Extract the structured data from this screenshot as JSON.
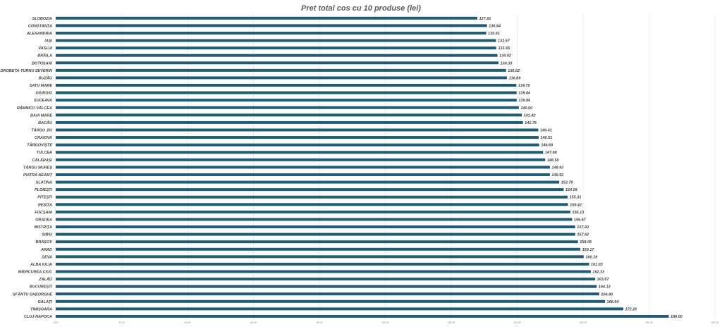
{
  "chart_data": {
    "type": "bar",
    "orientation": "horizontal",
    "title": "Pret total cos cu 10 produse (lei)",
    "xlabel": "",
    "ylabel": "",
    "xlim": [
      0,
      200
    ],
    "grid": true,
    "legend": "none",
    "bar_color": "#1f5c7a",
    "ticks": [
      "0.00",
      "20.00",
      "40.00",
      "60.00",
      "80.00",
      "100.00",
      "120.00",
      "140.00",
      "160.00",
      "180.00",
      "200.00"
    ],
    "tick_values": [
      0,
      20,
      40,
      60,
      80,
      100,
      120,
      140,
      160,
      180,
      200
    ],
    "categories": [
      "SLOBOZIA",
      "CONSTANȚA",
      "ALEXANDRIA",
      "IAȘI",
      "VASLUI",
      "BRĂILA",
      "BOTOȘANI",
      "DROBETA-TURNU SEVERIN",
      "BUZĂU",
      "SATU MARE",
      "GIURGIU",
      "SUCEAVA",
      "RÂMNICU VÂLCEA",
      "BAIA MARE",
      "BACĂU",
      "TÂRGU JIU",
      "CRAIOVA",
      "TÂRGOVIȘTE",
      "TULCEA",
      "CĂLĂRAȘI",
      "TÂRGU MUREȘ",
      "PIATRA NEAMȚ",
      "SLATINA",
      "PLOIEȘTI",
      "PITEȘTI",
      "REȘIȚA",
      "FOCȘANI",
      "ORADEA",
      "BISTRIȚA",
      "SIBIU",
      "BRAȘOV",
      "ARAD",
      "DEVA",
      "ALBA IULIA",
      "MIERCUREA CIUC",
      "ZALĂU",
      "BUCUREȘTI",
      "SFÂNTU GHEORGHE",
      "GALAȚI",
      "TIMIȘOARA",
      "CLUJ-NAPOCA"
    ],
    "values": [
      127.91,
      130.84,
      130.61,
      133.57,
      133.65,
      134.02,
      134.33,
      136.62,
      136.89,
      139.75,
      139.84,
      139.86,
      140.5,
      141.42,
      141.75,
      146.41,
      146.51,
      146.68,
      147.88,
      148.5,
      149.93,
      149.92,
      152.78,
      154.09,
      155.31,
      155.42,
      156.13,
      156.67,
      157.6,
      157.62,
      158.45,
      159.17,
      160.19,
      161.83,
      162.33,
      163.67,
      164.13,
      164.9,
      166.64,
      172.2,
      186.0
    ],
    "labels": [
      "127.91",
      "130.84",
      "130.61",
      "133.57",
      "133.65",
      "134.02",
      "134.33",
      "136.62",
      "136.89",
      "139.75",
      "139.84",
      "139.86",
      "140.50",
      "141.42",
      "141.75",
      "146.41",
      "146.51",
      "146.68",
      "147.88",
      "148.50",
      "149.93",
      "149.92",
      "152.78",
      "154.09",
      "155.31",
      "155.42",
      "156.13",
      "156.67",
      "157.60",
      "157.62",
      "158.45",
      "159.17",
      "160.19",
      "161.83",
      "162.33",
      "163.67",
      "164.13",
      "164.90",
      "166.64",
      "172.20",
      "186.00"
    ]
  }
}
